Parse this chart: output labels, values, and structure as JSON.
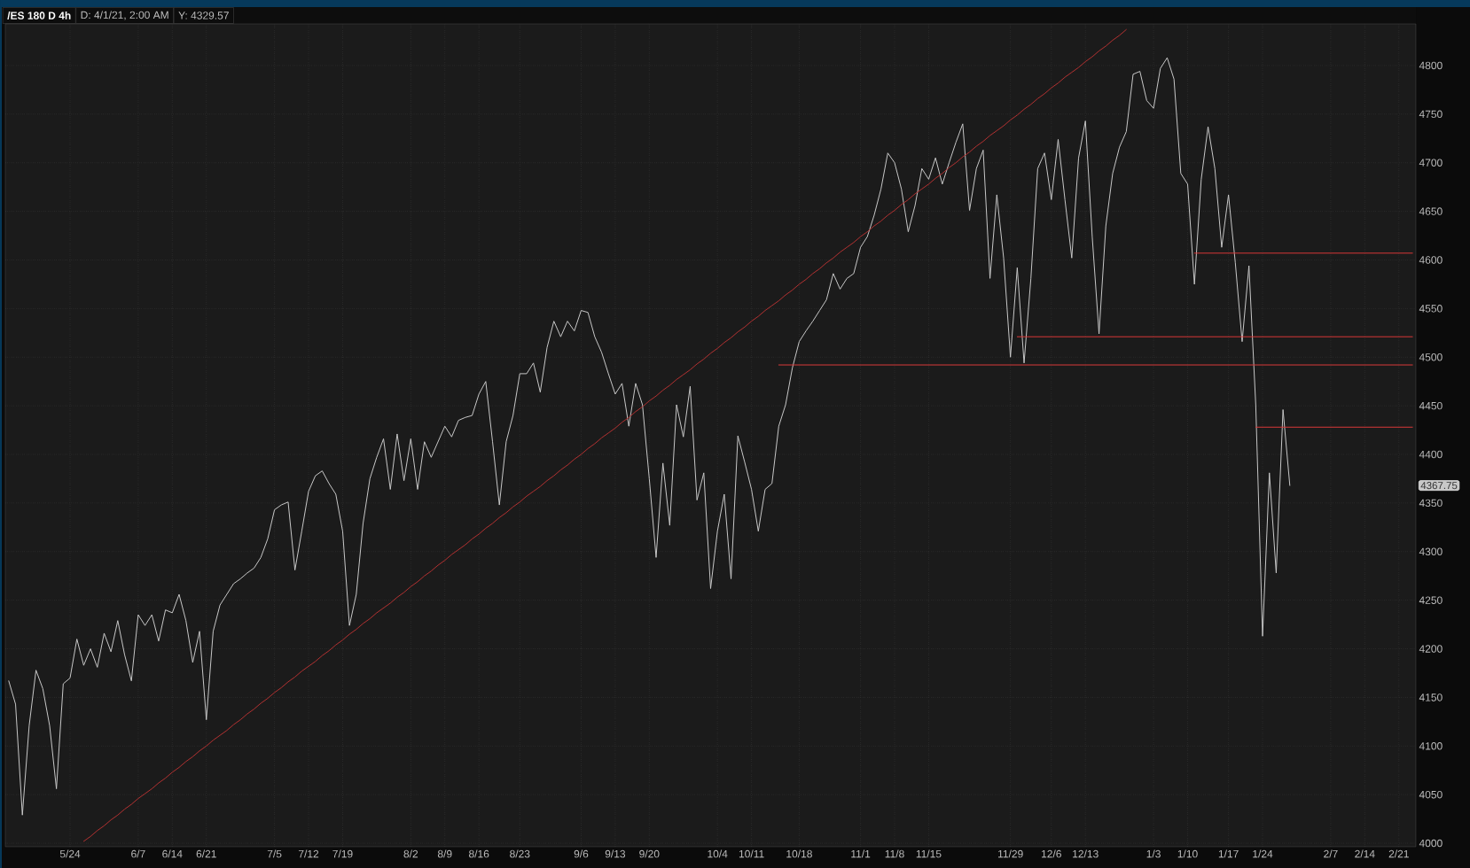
{
  "chart_data": {
    "type": "line",
    "title": "/ES 180 D 4h",
    "annotations": [
      "D: 4/1/21, 2:00 AM",
      "Y: 4329.57",
      "4367.75"
    ],
    "categories": [
      null,
      null,
      null,
      null,
      null,
      null,
      null,
      null,
      null,
      "5/24",
      null,
      null,
      null,
      null,
      null,
      null,
      null,
      null,
      null,
      "6/7",
      null,
      null,
      null,
      null,
      "6/14",
      null,
      null,
      null,
      null,
      "6/21",
      null,
      null,
      null,
      null,
      null,
      null,
      null,
      null,
      null,
      "7/5",
      null,
      null,
      null,
      null,
      "7/12",
      null,
      null,
      null,
      null,
      "7/19",
      null,
      null,
      null,
      null,
      null,
      null,
      null,
      null,
      null,
      "8/2",
      null,
      null,
      null,
      null,
      "8/9",
      null,
      null,
      null,
      null,
      "8/16",
      null,
      null,
      null,
      null,
      null,
      "8/23",
      null,
      null,
      null,
      null,
      null,
      null,
      null,
      null,
      "9/6",
      null,
      null,
      null,
      null,
      "9/13",
      null,
      null,
      null,
      null,
      "9/20",
      null,
      null,
      null,
      null,
      null,
      null,
      null,
      null,
      null,
      "10/4",
      null,
      null,
      null,
      null,
      "10/11",
      null,
      null,
      null,
      null,
      null,
      null,
      "10/18",
      null,
      null,
      null,
      null,
      null,
      null,
      null,
      null,
      "11/1",
      null,
      null,
      null,
      null,
      "11/8",
      null,
      null,
      null,
      null,
      "11/15",
      null,
      null,
      null,
      null,
      null,
      null,
      null,
      null,
      null,
      null,
      null,
      "11/29",
      null,
      null,
      null,
      null,
      null,
      "12/6",
      null,
      null,
      null,
      null,
      "12/13",
      null,
      null,
      null,
      null,
      null,
      null,
      null,
      null,
      null,
      "1/3",
      null,
      null,
      null,
      null,
      "1/10",
      null,
      null,
      null,
      null,
      null,
      "1/17",
      null,
      null,
      null,
      null,
      "1/24",
      null,
      null,
      null,
      null,
      null,
      null,
      null,
      null,
      null,
      "2/7",
      null,
      null,
      null,
      null,
      "2/14",
      null,
      null,
      null,
      null,
      "2/21",
      null,
      null
    ],
    "ylim": [
      3996.4,
      4842.8
    ],
    "yticks": [
      4000,
      4050,
      4100,
      4150,
      4200,
      4250,
      4300,
      4350,
      4400,
      4450,
      4500,
      4550,
      4600,
      4650,
      4700,
      4750,
      4800
    ],
    "grid": true,
    "series": [
      {
        "color": "#c8c8c8",
        "values": [
          4167,
          4143,
          4029,
          4121,
          4178,
          4159,
          4121,
          4056,
          4164,
          4170,
          4210,
          4183,
          4200,
          4181,
          4216,
          4197,
          4229,
          4194,
          4167,
          4235,
          4224,
          4235,
          4208,
          4240,
          4237,
          4256,
          4229,
          4186,
          4218,
          4127,
          4218,
          4245,
          4256,
          4267,
          4272,
          4278,
          4283,
          4294,
          4313,
          4343,
          4348,
          4351,
          4281,
          4321,
          4362,
          4378,
          4383,
          4370,
          4359,
          4321,
          4224,
          4256,
          4329,
          4375,
          4397,
          4416,
          4364,
          4421,
          4373,
          4416,
          4364,
          4413,
          4397,
          4413,
          4429,
          4418,
          4435,
          4438,
          4440,
          4462,
          4475,
          4413,
          4348,
          4413,
          4440,
          4483,
          4483,
          4494,
          4464,
          4510,
          4537,
          4521,
          4537,
          4527,
          4548,
          4546,
          4521,
          4505,
          4483,
          4462,
          4473,
          4429,
          4473,
          4451,
          4375,
          4294,
          4391,
          4327,
          4451,
          4418,
          4470,
          4353,
          4381,
          4262,
          4321,
          4359,
          4272,
          4419,
          4392,
          4364,
          4321,
          4364,
          4370,
          4429,
          4451,
          4489,
          4516,
          4527,
          4537,
          4548,
          4559,
          4586,
          4570,
          4581,
          4586,
          4613,
          4624,
          4646,
          4673,
          4710,
          4700,
          4673,
          4629,
          4656,
          4694,
          4683,
          4705,
          4678,
          4700,
          4721,
          4740,
          4651,
          4694,
          4713,
          4581,
          4667,
          4602,
          4500,
          4592,
          4494,
          4581,
          4694,
          4710,
          4662,
          4724,
          4662,
          4602,
          4705,
          4743,
          4624,
          4524,
          4635,
          4689,
          4716,
          4732,
          4791,
          4794,
          4764,
          4756,
          4797,
          4808,
          4786,
          4689,
          4678,
          4575,
          4683,
          4737,
          4694,
          4613,
          4667,
          4597,
          4516,
          4594,
          4451,
          4213,
          4381,
          4278,
          4446,
          4368,
          null,
          null,
          null,
          null,
          null,
          null,
          null,
          null,
          null,
          null,
          null,
          null,
          null,
          null,
          null,
          null,
          null,
          null
        ]
      },
      {
        "color": "#b33131",
        "values": [
          null,
          null,
          null,
          null,
          null,
          null,
          null,
          null,
          null,
          null,
          null,
          4002,
          4007,
          4013,
          4018,
          4024,
          4029,
          4035,
          4040,
          4046,
          4051,
          4056,
          4062,
          4067,
          4073,
          4078,
          4084,
          4089,
          4095,
          4100,
          4106,
          4111,
          4116,
          4122,
          4127,
          4133,
          4138,
          4144,
          4149,
          4155,
          4160,
          4166,
          4171,
          4177,
          4182,
          4187,
          4193,
          4198,
          4204,
          4209,
          4215,
          4220,
          4226,
          4231,
          4237,
          4242,
          4247,
          4253,
          4258,
          4264,
          4269,
          4275,
          4280,
          4286,
          4291,
          4297,
          4302,
          4307,
          4313,
          4318,
          4324,
          4329,
          4335,
          4340,
          4346,
          4351,
          4357,
          4362,
          4367,
          4373,
          4378,
          4384,
          4389,
          4395,
          4400,
          4406,
          4411,
          4417,
          4422,
          4427,
          4433,
          4438,
          4444,
          4449,
          4455,
          4460,
          4466,
          4471,
          4477,
          4482,
          4487,
          4493,
          4498,
          4504,
          4509,
          4515,
          4520,
          4526,
          4531,
          4537,
          4542,
          4548,
          4553,
          4558,
          4564,
          4569,
          4575,
          4580,
          4586,
          4591,
          4597,
          4602,
          4608,
          4613,
          4618,
          4624,
          4629,
          4635,
          4640,
          4646,
          4651,
          4657,
          4662,
          4668,
          4673,
          4678,
          4684,
          4689,
          4695,
          4700,
          4706,
          4711,
          4717,
          4722,
          4728,
          4733,
          4738,
          4744,
          4749,
          4755,
          4760,
          4766,
          4771,
          4777,
          4782,
          4788,
          4793,
          4798,
          4804,
          4809,
          4815,
          4820,
          4826,
          4831,
          4837,
          null,
          null,
          null,
          null,
          null,
          null,
          null,
          null,
          null,
          null,
          null,
          null,
          null,
          null,
          null,
          null,
          null,
          null,
          null,
          null,
          null,
          null,
          null,
          null,
          null,
          null,
          null,
          null,
          null,
          null,
          null,
          null,
          null,
          null,
          null,
          null,
          null,
          null,
          null,
          null,
          null,
          null
        ]
      },
      {
        "color": "#d93838",
        "values": [
          null,
          null,
          null,
          null,
          null,
          null,
          null,
          null,
          null,
          null,
          null,
          null,
          null,
          null,
          null,
          null,
          null,
          null,
          null,
          null,
          null,
          null,
          null,
          null,
          null,
          null,
          null,
          null,
          null,
          null,
          null,
          null,
          null,
          null,
          null,
          null,
          null,
          null,
          null,
          null,
          null,
          null,
          null,
          null,
          null,
          null,
          null,
          null,
          null,
          null,
          null,
          null,
          null,
          null,
          null,
          null,
          null,
          null,
          null,
          null,
          null,
          null,
          null,
          null,
          null,
          null,
          null,
          null,
          null,
          null,
          null,
          null,
          null,
          null,
          null,
          null,
          null,
          null,
          null,
          null,
          null,
          null,
          null,
          null,
          null,
          null,
          null,
          null,
          null,
          null,
          null,
          null,
          null,
          null,
          null,
          null,
          null,
          null,
          null,
          null,
          null,
          null,
          null,
          null,
          null,
          null,
          null,
          null,
          null,
          null,
          null,
          null,
          null,
          4492,
          4492,
          4492,
          4492,
          4492,
          4492,
          4492,
          4492,
          4492,
          4492,
          4492,
          4492,
          4492,
          4492,
          4492,
          4492,
          4492,
          4492,
          4492,
          4492,
          4492,
          4492,
          4492,
          4492,
          4492,
          4492,
          4492,
          4492,
          4492,
          4492,
          4492,
          4492,
          4492,
          4492,
          4492,
          4492,
          4492,
          4492,
          4492,
          4492,
          4492,
          4492,
          4492,
          4492,
          4492,
          4492,
          4492,
          4492,
          4492,
          4492,
          4492,
          4492,
          4492,
          4492,
          4492,
          4492,
          4492,
          4492,
          4492,
          4492,
          4492,
          4492,
          4492,
          4492,
          4492,
          4492,
          4492,
          4492,
          4492,
          4492,
          4492,
          4492,
          4492,
          4492,
          4492,
          4492,
          4492,
          4492,
          4492,
          4492,
          4492,
          4492,
          4492,
          4492,
          4492,
          4492,
          4492,
          4492,
          4492,
          4492,
          4492,
          4492,
          4492,
          4492
        ]
      },
      {
        "color": "#d93838",
        "values": [
          null,
          null,
          null,
          null,
          null,
          null,
          null,
          null,
          null,
          null,
          null,
          null,
          null,
          null,
          null,
          null,
          null,
          null,
          null,
          null,
          null,
          null,
          null,
          null,
          null,
          null,
          null,
          null,
          null,
          null,
          null,
          null,
          null,
          null,
          null,
          null,
          null,
          null,
          null,
          null,
          null,
          null,
          null,
          null,
          null,
          null,
          null,
          null,
          null,
          null,
          null,
          null,
          null,
          null,
          null,
          null,
          null,
          null,
          null,
          null,
          null,
          null,
          null,
          null,
          null,
          null,
          null,
          null,
          null,
          null,
          null,
          null,
          null,
          null,
          null,
          null,
          null,
          null,
          null,
          null,
          null,
          null,
          null,
          null,
          null,
          null,
          null,
          null,
          null,
          null,
          null,
          null,
          null,
          null,
          null,
          null,
          null,
          null,
          null,
          null,
          null,
          null,
          null,
          null,
          null,
          null,
          null,
          null,
          null,
          null,
          null,
          null,
          null,
          null,
          null,
          null,
          null,
          null,
          null,
          null,
          null,
          null,
          null,
          null,
          null,
          null,
          null,
          null,
          null,
          null,
          null,
          null,
          null,
          null,
          null,
          null,
          null,
          null,
          null,
          null,
          null,
          null,
          null,
          null,
          null,
          null,
          null,
          null,
          4521,
          4521,
          4521,
          4521,
          4521,
          4521,
          4521,
          4521,
          4521,
          4521,
          4521,
          4521,
          4521,
          4521,
          4521,
          4521,
          4521,
          4521,
          4521,
          4521,
          4521,
          4521,
          4521,
          4521,
          4521,
          4521,
          4521,
          4521,
          4521,
          4521,
          4521,
          4521,
          4521,
          4521,
          4521,
          4521,
          4521,
          4521,
          4521,
          4521,
          4521,
          4521,
          4521,
          4521,
          4521,
          4521,
          4521,
          4521,
          4521,
          4521,
          4521,
          4521,
          4521,
          4521,
          4521,
          4521,
          4521,
          4521,
          4521
        ]
      },
      {
        "color": "#d93838",
        "values": [
          null,
          null,
          null,
          null,
          null,
          null,
          null,
          null,
          null,
          null,
          null,
          null,
          null,
          null,
          null,
          null,
          null,
          null,
          null,
          null,
          null,
          null,
          null,
          null,
          null,
          null,
          null,
          null,
          null,
          null,
          null,
          null,
          null,
          null,
          null,
          null,
          null,
          null,
          null,
          null,
          null,
          null,
          null,
          null,
          null,
          null,
          null,
          null,
          null,
          null,
          null,
          null,
          null,
          null,
          null,
          null,
          null,
          null,
          null,
          null,
          null,
          null,
          null,
          null,
          null,
          null,
          null,
          null,
          null,
          null,
          null,
          null,
          null,
          null,
          null,
          null,
          null,
          null,
          null,
          null,
          null,
          null,
          null,
          null,
          null,
          null,
          null,
          null,
          null,
          null,
          null,
          null,
          null,
          null,
          null,
          null,
          null,
          null,
          null,
          null,
          null,
          null,
          null,
          null,
          null,
          null,
          null,
          null,
          null,
          null,
          null,
          null,
          null,
          null,
          null,
          null,
          null,
          null,
          null,
          null,
          null,
          null,
          null,
          null,
          null,
          null,
          null,
          null,
          null,
          null,
          null,
          null,
          null,
          null,
          null,
          null,
          null,
          null,
          null,
          null,
          null,
          null,
          null,
          null,
          null,
          null,
          null,
          null,
          null,
          null,
          null,
          null,
          null,
          null,
          null,
          null,
          null,
          null,
          null,
          null,
          null,
          null,
          null,
          null,
          null,
          null,
          null,
          null,
          null,
          null,
          null,
          null,
          null,
          null,
          4607,
          4607,
          4607,
          4607,
          4607,
          4607,
          4607,
          4607,
          4607,
          4607,
          4607,
          4607,
          4607,
          4607,
          4607,
          4607,
          4607,
          4607,
          4607,
          4607,
          4607,
          4607,
          4607,
          4607,
          4607,
          4607,
          4607,
          4607,
          4607,
          4607,
          4607,
          4607,
          4607
        ]
      },
      {
        "color": "#d93838",
        "values": [
          null,
          null,
          null,
          null,
          null,
          null,
          null,
          null,
          null,
          null,
          null,
          null,
          null,
          null,
          null,
          null,
          null,
          null,
          null,
          null,
          null,
          null,
          null,
          null,
          null,
          null,
          null,
          null,
          null,
          null,
          null,
          null,
          null,
          null,
          null,
          null,
          null,
          null,
          null,
          null,
          null,
          null,
          null,
          null,
          null,
          null,
          null,
          null,
          null,
          null,
          null,
          null,
          null,
          null,
          null,
          null,
          null,
          null,
          null,
          null,
          null,
          null,
          null,
          null,
          null,
          null,
          null,
          null,
          null,
          null,
          null,
          null,
          null,
          null,
          null,
          null,
          null,
          null,
          null,
          null,
          null,
          null,
          null,
          null,
          null,
          null,
          null,
          null,
          null,
          null,
          null,
          null,
          null,
          null,
          null,
          null,
          null,
          null,
          null,
          null,
          null,
          null,
          null,
          null,
          null,
          null,
          null,
          null,
          null,
          null,
          null,
          null,
          null,
          null,
          null,
          null,
          null,
          null,
          null,
          null,
          null,
          null,
          null,
          null,
          null,
          null,
          null,
          null,
          null,
          null,
          null,
          null,
          null,
          null,
          null,
          null,
          null,
          null,
          null,
          null,
          null,
          null,
          null,
          null,
          null,
          null,
          null,
          null,
          null,
          null,
          null,
          null,
          null,
          null,
          null,
          null,
          null,
          null,
          null,
          null,
          null,
          null,
          null,
          null,
          null,
          null,
          null,
          null,
          null,
          null,
          null,
          null,
          null,
          null,
          null,
          null,
          null,
          null,
          null,
          null,
          null,
          null,
          null,
          4428,
          4428,
          4428,
          4428,
          4428,
          4428,
          4428,
          4428,
          4428,
          4428,
          4428,
          4428,
          4428,
          4428,
          4428,
          4428,
          4428,
          4428,
          4428,
          4428,
          4428,
          4428,
          4428,
          4428
        ]
      }
    ]
  }
}
